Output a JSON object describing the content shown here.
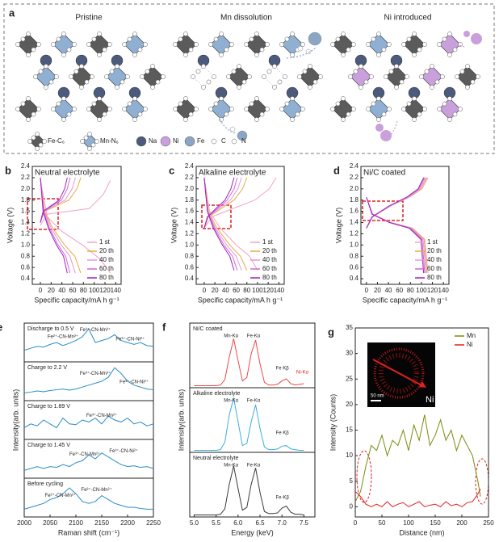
{
  "diagram": {
    "label": "a",
    "titles": [
      "Pristine",
      "Mn dissolution",
      "Ni introduced"
    ],
    "legend": [
      "Fe-C₆",
      "Mn-N₆",
      "Na",
      "Ni",
      "Fe",
      "C",
      "N"
    ]
  },
  "chart_data": [
    {
      "type": "line",
      "panel_label": "b",
      "title": "Neutral electrolyte",
      "xlabel": "Specific capacity/mA h g⁻¹",
      "ylabel": "Voltage (V)",
      "xlim": [
        -15,
        150
      ],
      "xticks": [
        0,
        20,
        40,
        60,
        80,
        100,
        120,
        140
      ],
      "ylim": [
        0.3,
        2.4
      ],
      "yticks": [
        0.4,
        0.6,
        0.8,
        {
          "value": 1,
          "label": "1.0"
        },
        1.2,
        1.4,
        1.6,
        1.8,
        {
          "value": 2,
          "label": "2.0"
        },
        2.2,
        2.4
      ],
      "legend": "bottom-right",
      "series": [
        {
          "name": "1 st",
          "color": "#f2a3c4",
          "x": [
            0,
            13,
            52,
            91,
            117,
            130,
            null,
            0,
            13,
            39,
            78,
            111,
            130
          ],
          "values": [
            1.35,
            1.55,
            1.6,
            1.65,
            1.9,
            2.15,
            null,
            2.15,
            1.5,
            1.25,
            1.0,
            0.75,
            0.5
          ]
        },
        {
          "name": "20 th",
          "color": "#e7ad3c",
          "x": [
            0,
            8,
            30,
            53,
            68,
            75,
            null,
            0,
            8,
            23,
            45,
            64,
            75
          ],
          "values": [
            1.4,
            1.6,
            1.7,
            1.8,
            2.0,
            2.2,
            null,
            2.2,
            1.6,
            1.3,
            1.0,
            0.8,
            0.5
          ]
        },
        {
          "name": "40 th",
          "color": "#e496e4",
          "x": [
            0,
            7,
            26,
            46,
            59,
            65,
            null,
            0,
            7,
            20,
            39,
            55,
            65
          ],
          "values": [
            1.4,
            1.6,
            1.7,
            1.8,
            2.0,
            2.2,
            null,
            2.2,
            1.6,
            1.3,
            1.0,
            0.8,
            0.5
          ]
        },
        {
          "name": "60 th",
          "color": "#d066d6",
          "x": [
            0,
            6,
            22,
            39,
            50,
            55,
            null,
            0,
            6,
            17,
            33,
            47,
            55
          ],
          "values": [
            1.4,
            1.6,
            1.7,
            1.8,
            2.0,
            2.2,
            null,
            2.2,
            1.6,
            1.3,
            1.0,
            0.8,
            0.5
          ]
        },
        {
          "name": "80 th",
          "color": "#a020c0",
          "x": [
            0,
            5,
            20,
            35,
            45,
            50,
            null,
            0,
            5,
            15,
            30,
            43,
            50
          ],
          "values": [
            1.4,
            1.6,
            1.7,
            1.8,
            2.0,
            2.2,
            null,
            2.2,
            1.6,
            1.3,
            1.0,
            0.8,
            0.5
          ]
        }
      ]
    },
    {
      "type": "line",
      "panel_label": "c",
      "title": "Alkaline electrolyte",
      "xlabel": "Specific capacity/mA h g⁻¹",
      "ylabel": "Voltage (V)",
      "xlim": [
        -15,
        150
      ],
      "xticks": [
        0,
        20,
        40,
        60,
        80,
        100,
        120,
        140
      ],
      "ylim": [
        0.3,
        2.4
      ],
      "yticks": [
        0.4,
        0.6,
        0.8,
        {
          "value": 1,
          "label": "1.0"
        },
        1.2,
        1.4,
        1.6,
        1.8,
        {
          "value": 2,
          "label": "2.0"
        },
        2.2,
        2.4
      ],
      "legend": "bottom-right",
      "series": [
        {
          "name": "1 st",
          "color": "#f2a3c4",
          "x": [
            0,
            14,
            54,
            95,
            122,
            135,
            null,
            0,
            10,
            30,
            60,
            85,
            100
          ],
          "values": [
            1.3,
            1.5,
            1.65,
            1.8,
            2.0,
            2.2,
            null,
            2.2,
            1.6,
            1.3,
            1.0,
            0.8,
            0.55
          ]
        },
        {
          "name": "20 th",
          "color": "#e7ad3c",
          "x": [
            0,
            8,
            32,
            56,
            72,
            80,
            null,
            0,
            8,
            24,
            48,
            68,
            80
          ],
          "values": [
            1.3,
            1.5,
            1.65,
            1.8,
            2.0,
            2.2,
            null,
            2.2,
            1.6,
            1.3,
            1.0,
            0.8,
            0.55
          ]
        },
        {
          "name": "40 th",
          "color": "#e496e4",
          "x": [
            0,
            7,
            28,
            49,
            63,
            70,
            null,
            0,
            7,
            21,
            42,
            60,
            70
          ],
          "values": [
            1.3,
            1.5,
            1.65,
            1.8,
            2.0,
            2.2,
            null,
            2.2,
            1.6,
            1.3,
            1.0,
            0.8,
            0.55
          ]
        },
        {
          "name": "60 th",
          "color": "#d066d6",
          "x": [
            0,
            6,
            25,
            43,
            56,
            62,
            null,
            0,
            6,
            19,
            37,
            53,
            62
          ],
          "values": [
            1.3,
            1.5,
            1.65,
            1.8,
            2.0,
            2.2,
            null,
            2.2,
            1.6,
            1.3,
            1.0,
            0.8,
            0.55
          ]
        },
        {
          "name": "80 th",
          "color": "#a020c0",
          "x": [
            0,
            6,
            22,
            39,
            50,
            56,
            null,
            0,
            6,
            17,
            34,
            48,
            56
          ],
          "values": [
            1.3,
            1.5,
            1.65,
            1.8,
            2.0,
            2.2,
            null,
            2.2,
            1.6,
            1.3,
            1.0,
            0.8,
            0.55
          ]
        }
      ]
    },
    {
      "type": "line",
      "panel_label": "d",
      "title": "Ni/C coated",
      "xlabel": "Specific capacity/mA h g⁻¹",
      "ylabel": "Voltage (V)",
      "xlim": [
        -10,
        150
      ],
      "xticks": [
        0,
        20,
        40,
        60,
        80,
        100,
        120,
        140
      ],
      "ylim": [
        0.3,
        2.4
      ],
      "yticks": [
        0.4,
        0.6,
        0.8,
        {
          "value": 1,
          "label": "1.0"
        },
        1.2,
        1.4,
        1.6,
        1.8,
        {
          "value": 2,
          "label": "2.0"
        },
        2.2,
        2.4
      ],
      "legend": "bottom-right",
      "series": [
        {
          "name": "1 st",
          "color": "#f2a3c4",
          "x": [
            0,
            11,
            45,
            78,
            101,
            112,
            null,
            0,
            11,
            45,
            84,
            106,
            112
          ],
          "values": [
            1.3,
            1.5,
            1.7,
            1.85,
            2.0,
            2.2,
            null,
            1.85,
            1.55,
            1.4,
            1.3,
            1.1,
            0.5
          ]
        },
        {
          "name": "20 th",
          "color": "#e7ad3c",
          "x": [
            0,
            11,
            44,
            77,
            99,
            110,
            null,
            0,
            11,
            44,
            83,
            105,
            110
          ],
          "values": [
            1.3,
            1.5,
            1.7,
            1.85,
            2.0,
            2.2,
            null,
            1.85,
            1.55,
            1.4,
            1.3,
            1.1,
            0.5
          ]
        },
        {
          "name": "40 th",
          "color": "#e496e4",
          "x": [
            0,
            11,
            43,
            76,
            97,
            108,
            null,
            0,
            11,
            43,
            81,
            103,
            108
          ],
          "values": [
            1.3,
            1.5,
            1.7,
            1.85,
            2.0,
            2.2,
            null,
            1.85,
            1.55,
            1.4,
            1.3,
            1.1,
            0.5
          ]
        },
        {
          "name": "60 th",
          "color": "#d066d6",
          "x": [
            0,
            11,
            42,
            74,
            95,
            106,
            null,
            0,
            11,
            42,
            80,
            101,
            106
          ],
          "values": [
            1.3,
            1.5,
            1.7,
            1.85,
            2.0,
            2.2,
            null,
            1.85,
            1.55,
            1.4,
            1.3,
            1.1,
            0.5
          ]
        },
        {
          "name": "80 th",
          "color": "#a020c0",
          "x": [
            0,
            10,
            42,
            73,
            94,
            104,
            null,
            0,
            10,
            42,
            78,
            99,
            104
          ],
          "values": [
            1.3,
            1.5,
            1.7,
            1.85,
            2.0,
            2.2,
            null,
            1.85,
            1.55,
            1.4,
            1.3,
            1.1,
            0.5
          ]
        }
      ]
    },
    {
      "type": "stacked-line",
      "panel_label": "e",
      "xlabel": "Raman shift (cm⁻¹)",
      "ylabel": "Intensity(arb. units)",
      "xlim": [
        2000,
        2250
      ],
      "xticks": [
        2000,
        2050,
        2100,
        2150,
        2200,
        2250
      ],
      "ylim": [
        0,
        10
      ],
      "color": "#2a8cc4",
      "x": [
        2000,
        2012.5,
        2025,
        2037.5,
        2050,
        2062.5,
        2075,
        2087.5,
        2100,
        2112.5,
        2125,
        2137.5,
        2150,
        2162.5,
        2175,
        2187.5,
        2200,
        2212.5,
        2225,
        2237.5,
        2250
      ],
      "panels": [
        {
          "label": "Discharge to 0.5 V",
          "annotations": [
            "Fe²⁺-CN-Mn²⁺",
            "Fe³⁺-CN-Mn³⁺",
            "Fe³⁺-CN-Ni²⁺"
          ],
          "values": [
            3,
            3.5,
            4,
            3.8,
            4.5,
            5,
            4.2,
            4.8,
            5.5,
            6.5,
            8.5,
            5,
            5.5,
            6,
            7,
            5.5,
            5,
            4.5,
            5,
            4.2,
            4
          ]
        },
        {
          "label": "Charge to 2.2 V",
          "annotations": [
            "Fe³⁺-CN-Mn³⁺",
            "Fe³⁺-CN-Ni²⁺"
          ],
          "values": [
            2,
            2.2,
            2.5,
            2.3,
            2.6,
            2.8,
            3,
            2.7,
            3,
            3.5,
            4,
            4.5,
            5,
            6,
            8.5,
            7,
            5,
            4,
            3.5,
            3,
            2.8
          ]
        },
        {
          "label": "Charge to 1.89 V",
          "annotations": [
            "Fe³⁺-CN-Mn²⁺"
          ],
          "values": [
            3,
            4,
            3.5,
            5,
            4,
            3,
            5.5,
            4,
            3.8,
            5,
            4.5,
            5.5,
            4,
            6,
            5,
            4.5,
            5.5,
            4,
            4.5,
            3.5,
            4
          ]
        },
        {
          "label": "Charge to 1.45 V",
          "annotations": [
            "Fe³⁺-CN-Mn²⁺",
            "Fe³⁺-CN-Ni²⁺"
          ],
          "values": [
            2,
            2.5,
            3,
            2.5,
            3,
            2.8,
            3.5,
            3,
            4,
            4.5,
            6,
            5,
            6.5,
            5.5,
            4.5,
            3.5,
            3,
            3.2,
            2.8,
            3,
            2.5
          ]
        },
        {
          "label": "Before cycling",
          "annotations": [
            "Fe²⁺-CN-Mn²⁺",
            "Fe³⁺-CN-Mn²⁺"
          ],
          "values": [
            2,
            2.5,
            3,
            3.5,
            4.5,
            5,
            6,
            7.5,
            6,
            4,
            3.5,
            4,
            5.5,
            4.5,
            3.5,
            3,
            2.5,
            2.5,
            2.2,
            2,
            2
          ]
        }
      ]
    },
    {
      "type": "stacked-line",
      "panel_label": "f",
      "xlabel": "Energy (keV)",
      "ylabel": "Intensity(arb. units)",
      "xlim": [
        4.9,
        7.75
      ],
      "xticks": [
        {
          "value": 5,
          "label": "5.0"
        },
        5.5,
        {
          "value": 6,
          "label": "6.0"
        },
        6.5,
        {
          "value": 7,
          "label": "7.0"
        },
        7.5
      ],
      "ylim": [
        0,
        9.5
      ],
      "x": [
        5,
        5.1,
        5.2,
        5.3,
        5.4,
        5.5,
        5.6,
        5.7,
        5.8,
        5.9,
        6,
        6.1,
        6.2,
        6.3,
        6.4,
        6.5,
        6.6,
        6.7,
        6.8,
        6.9,
        7,
        7.1,
        7.2,
        7.3,
        7.4,
        7.5
      ],
      "panels": [
        {
          "label": "Ni/C coated",
          "color": "#f04848",
          "annotations": [
            "Mn-Kα",
            "Fe-Kα",
            "Fe Kβ",
            "Ni-Kα"
          ],
          "values": [
            0.3,
            0.3,
            0.3,
            0.3,
            0.3,
            0.3,
            0.4,
            1.2,
            4.5,
            7.2,
            4.0,
            1.0,
            1.5,
            5.0,
            7.0,
            3.5,
            0.8,
            0.4,
            0.4,
            0.5,
            1.0,
            1.3,
            0.6,
            0.4,
            0.5,
            0.6
          ]
        },
        {
          "label": "Alkaline electrolyte",
          "color": "#3aaee0",
          "annotations": [
            "Mn-Kα",
            "Fe-Kα",
            "Fe Kβ"
          ],
          "values": [
            0.3,
            0.3,
            0.3,
            0.3,
            0.3,
            0.3,
            0.4,
            1.5,
            5.5,
            8.0,
            4.5,
            1.0,
            1.3,
            4.5,
            7.0,
            3.5,
            0.8,
            0.4,
            0.4,
            0.5,
            0.9,
            1.0,
            0.5,
            0.4,
            0.3,
            0.3
          ]
        },
        {
          "label": "Neutral electrolyte",
          "color": "#3a3a3a",
          "annotations": [
            "Mn-Kα",
            "Fe-Kα",
            "Fe-Kβ"
          ],
          "values": [
            0.3,
            0.3,
            0.3,
            0.3,
            0.3,
            0.3,
            0.4,
            1.2,
            4.8,
            7.5,
            4.2,
            1.0,
            1.4,
            4.8,
            7.2,
            3.6,
            0.8,
            0.5,
            0.5,
            0.6,
            1.3,
            1.6,
            0.7,
            0.4,
            0.4,
            0.3
          ]
        }
      ]
    },
    {
      "type": "line",
      "panel_label": "g",
      "xlabel": "Distance (nm)",
      "ylabel": "Intensity (Counts)",
      "xlim": [
        0,
        250
      ],
      "xticks": [
        0,
        50,
        100,
        150,
        200,
        250
      ],
      "ylim": [
        -2,
        35
      ],
      "yticks": [
        0,
        5,
        10,
        15,
        20,
        25,
        30,
        35
      ],
      "legend": "top-right",
      "inset_label": "Ni",
      "scale_bar": "50 nm",
      "series": [
        {
          "name": "Mn",
          "color": "#7d8a0c",
          "x": [
            0,
            10,
            20,
            30,
            40,
            50,
            60,
            70,
            80,
            90,
            100,
            110,
            120,
            130,
            140,
            150,
            160,
            170,
            180,
            190,
            200,
            210,
            220,
            230,
            235
          ],
          "values": [
            1,
            3,
            8,
            12,
            11,
            14,
            10,
            13,
            12,
            15,
            11,
            16,
            13,
            18,
            12,
            14,
            17,
            13,
            15,
            11,
            14,
            12,
            10,
            5,
            2
          ]
        },
        {
          "name": "Ni",
          "color": "#e02020",
          "x": [
            0,
            10,
            20,
            30,
            40,
            50,
            60,
            70,
            80,
            90,
            100,
            110,
            120,
            130,
            140,
            150,
            160,
            170,
            180,
            190,
            200,
            210,
            220,
            230,
            235
          ],
          "values": [
            3,
            2,
            0.5,
            0,
            0.5,
            0,
            1,
            0,
            0.5,
            0.8,
            0,
            0.5,
            1,
            0,
            0.3,
            0.5,
            0,
            1,
            0.2,
            0.5,
            0,
            0.8,
            1,
            2.5,
            3.5
          ]
        }
      ]
    }
  ]
}
